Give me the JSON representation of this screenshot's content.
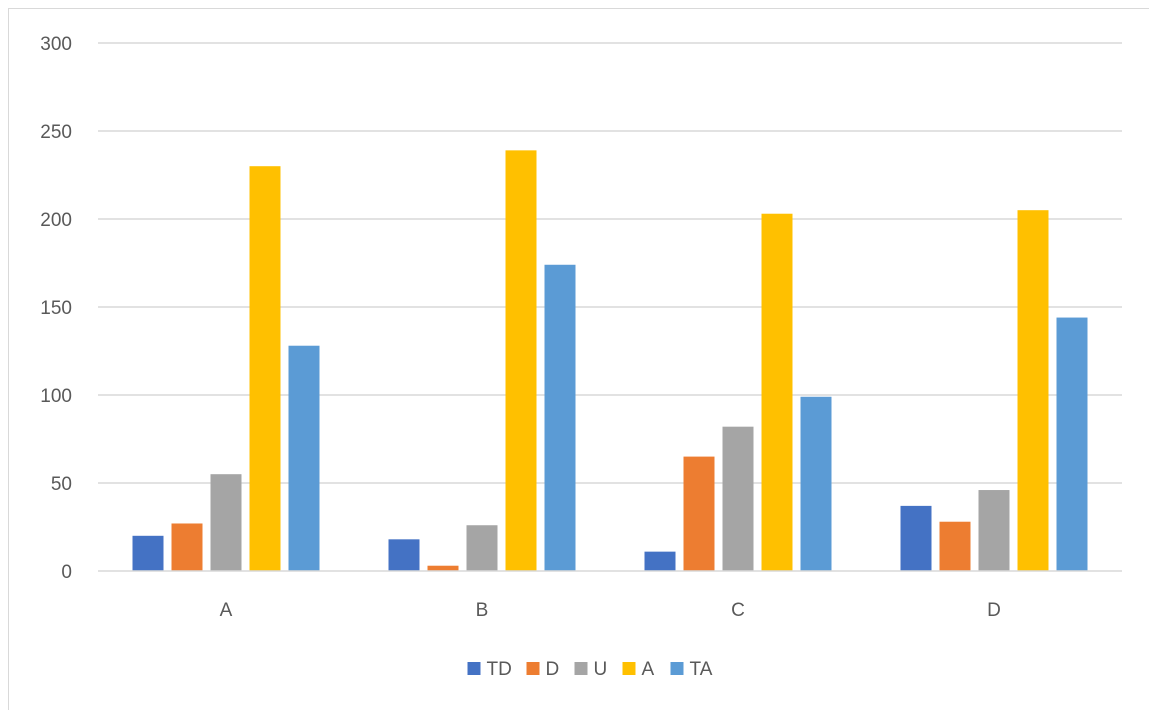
{
  "chart_data": {
    "type": "bar",
    "title": "",
    "xlabel": "",
    "ylabel": "",
    "categories": [
      "A",
      "B",
      "C",
      "D"
    ],
    "series": [
      {
        "name": "TD",
        "color": "#4472c4",
        "values": [
          20,
          18,
          11,
          37
        ]
      },
      {
        "name": "D",
        "color": "#ed7d31",
        "values": [
          27,
          3,
          65,
          28
        ]
      },
      {
        "name": "U",
        "color": "#a5a5a5",
        "values": [
          55,
          26,
          82,
          46
        ]
      },
      {
        "name": "A",
        "color": "#ffc000",
        "values": [
          230,
          239,
          203,
          205
        ]
      },
      {
        "name": "TA",
        "color": "#5b9bd5",
        "values": [
          128,
          174,
          99,
          144
        ]
      }
    ],
    "ylim": [
      0,
      300
    ],
    "yticks": [
      0,
      50,
      100,
      150,
      200,
      250,
      300
    ],
    "grid": true,
    "legend_position": "bottom"
  }
}
